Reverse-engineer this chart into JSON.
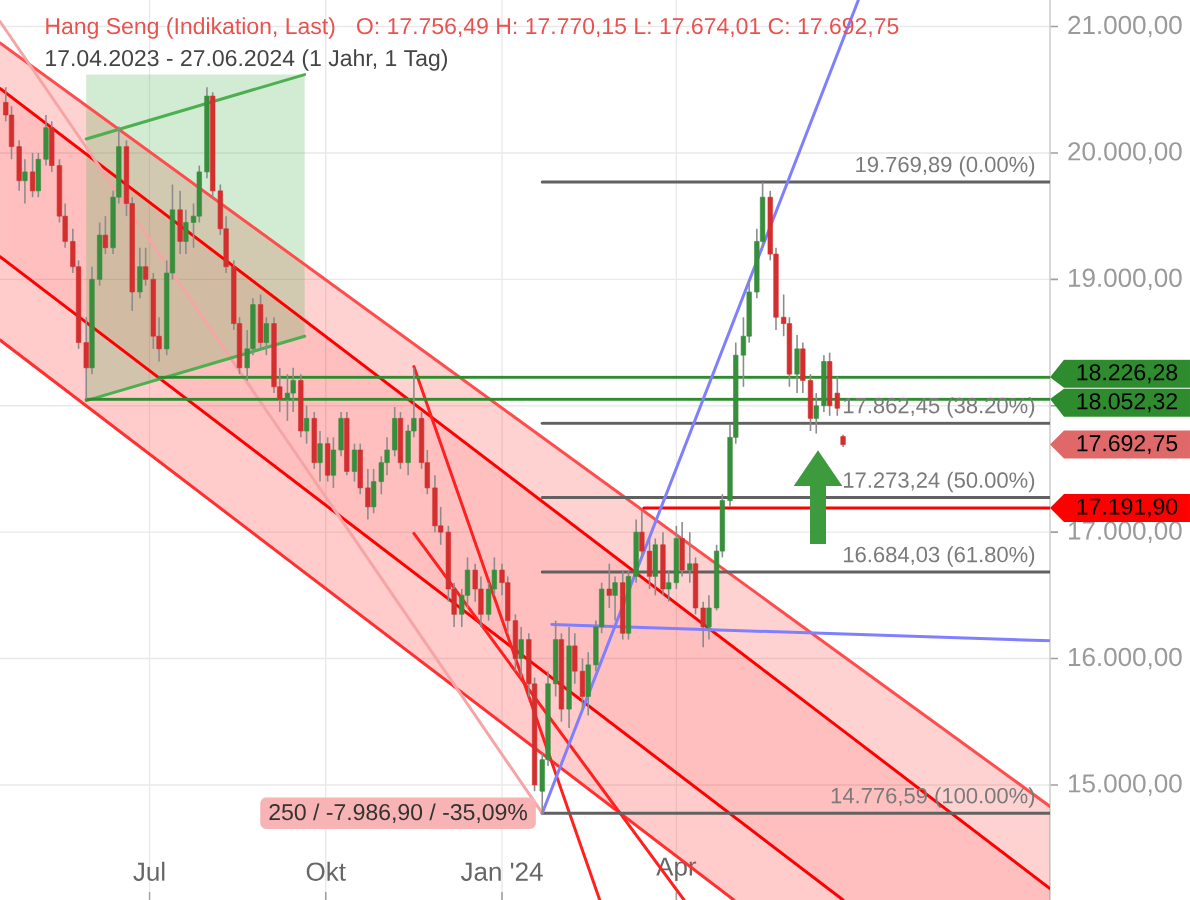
{
  "chart_data": {
    "type": "candlestick",
    "title": "Hang Seng (Indikation, Last)",
    "subtitle": "17.04.2023 - 27.06.2024 (1 Jahr, 1 Tag)",
    "annotations": [
      "O: 17.756,49 H: 17.770,15 L: 17.674,01 C: 17.692,75",
      {
        "text": "19.769,89 (0.00%)",
        "x": "2024-10-13",
        "y": 19769.89
      },
      {
        "text": "17.862,45 (38.20%)",
        "x": "2024-10-13",
        "y": 17862.45
      },
      {
        "text": "17.273,24 (50.00%)",
        "x": "2024-10-13",
        "y": 17273.24
      },
      {
        "text": "16.684,03 (61.80%)",
        "x": "2024-10-13",
        "y": 16684.03
      },
      {
        "text": "14.776,59 (100.00%)",
        "x": "2024-10-13",
        "y": 14776.59
      },
      {
        "text": "250 / -7.986,90 / -35,09%",
        "x": "2024-01-22",
        "y": 14776.59
      }
    ],
    "xlim": [
      "2023-04-14",
      "2024-10-13"
    ],
    "xticks": [
      {
        "value": "2023-07-01",
        "label": "Jul"
      },
      {
        "value": "2023-10-01",
        "label": "Okt"
      },
      {
        "value": "2024-01-01",
        "label": "Jan '24"
      },
      {
        "value": "2024-04-01",
        "label": "Apr"
      }
    ],
    "ylim": [
      14090,
      21210
    ],
    "yticks": [
      {
        "value": 15000,
        "label": "15.000,00"
      },
      {
        "value": 16000,
        "label": "16.000,00"
      },
      {
        "value": 17000,
        "label": "17.000,00"
      },
      {
        "value": 18000,
        "label": null
      },
      {
        "value": 19000,
        "label": "19.000,00"
      },
      {
        "value": 20000,
        "label": "20.000,00"
      },
      {
        "value": 21000,
        "label": "21.000,00"
      }
    ],
    "grid": true,
    "series": [
      {
        "x": [
          "2023-04-17",
          "2023-04-20",
          "2023-04-24",
          "2023-04-27",
          "2023-05-01",
          "2023-05-04",
          "2023-05-08",
          "2023-05-11",
          "2023-05-15",
          "2023-05-18",
          "2023-05-22",
          "2023-05-25",
          "2023-05-29",
          "2023-06-01",
          "2023-06-05",
          "2023-06-08",
          "2023-06-12",
          "2023-06-15",
          "2023-06-19",
          "2023-06-22",
          "2023-06-26",
          "2023-06-29",
          "2023-07-03",
          "2023-07-06",
          "2023-07-10",
          "2023-07-13",
          "2023-07-17",
          "2023-07-20",
          "2023-07-24",
          "2023-07-27",
          "2023-07-31",
          "2023-08-03",
          "2023-08-07",
          "2023-08-10",
          "2023-08-14",
          "2023-08-17",
          "2023-08-21",
          "2023-08-24",
          "2023-08-28",
          "2023-08-31",
          "2023-09-04",
          "2023-09-07",
          "2023-09-11",
          "2023-09-14",
          "2023-09-18",
          "2023-09-21",
          "2023-09-25",
          "2023-09-28",
          "2023-10-02",
          "2023-10-05",
          "2023-10-09",
          "2023-10-12",
          "2023-10-16",
          "2023-10-19",
          "2023-10-23",
          "2023-10-26",
          "2023-10-30",
          "2023-11-02",
          "2023-11-06",
          "2023-11-09",
          "2023-11-13",
          "2023-11-16",
          "2023-11-20",
          "2023-11-23",
          "2023-11-27",
          "2023-11-30",
          "2023-12-04",
          "2023-12-07",
          "2023-12-11",
          "2023-12-14",
          "2023-12-18",
          "2023-12-21",
          "2023-12-25",
          "2023-12-28",
          "2024-01-01",
          "2024-01-04",
          "2024-01-08",
          "2024-01-11",
          "2024-01-15",
          "2024-01-18",
          "2024-01-22",
          "2024-01-25",
          "2024-01-29",
          "2024-02-01",
          "2024-02-05",
          "2024-02-08",
          "2024-02-12",
          "2024-02-15",
          "2024-02-19",
          "2024-02-22",
          "2024-02-26",
          "2024-02-29",
          "2024-03-04",
          "2024-03-07",
          "2024-03-11",
          "2024-03-14",
          "2024-03-18",
          "2024-03-21",
          "2024-03-25",
          "2024-03-28",
          "2024-04-01",
          "2024-04-04",
          "2024-04-08",
          "2024-04-11",
          "2024-04-15",
          "2024-04-18",
          "2024-04-22",
          "2024-04-25",
          "2024-04-29",
          "2024-05-02",
          "2024-05-06",
          "2024-05-09",
          "2024-05-13",
          "2024-05-16",
          "2024-05-20",
          "2024-05-23",
          "2024-05-27",
          "2024-05-30",
          "2024-06-03",
          "2024-06-06",
          "2024-06-10",
          "2024-06-13",
          "2024-06-17",
          "2024-06-20",
          "2024-06-24",
          "2024-06-27"
        ],
        "ohlc": [
          [
            20400,
            20520,
            20250,
            20300
          ],
          [
            20300,
            20370,
            19950,
            20050
          ],
          [
            20050,
            20100,
            19700,
            19780
          ],
          [
            19780,
            19950,
            19600,
            19850
          ],
          [
            19850,
            20000,
            19650,
            19700
          ],
          [
            19700,
            20000,
            19650,
            19950
          ],
          [
            19950,
            20300,
            19900,
            20200
          ],
          [
            20200,
            20250,
            19850,
            19900
          ],
          [
            19900,
            19950,
            19450,
            19500
          ],
          [
            19500,
            19600,
            19250,
            19300
          ],
          [
            19300,
            19400,
            19050,
            19100
          ],
          [
            19100,
            19150,
            18450,
            18500
          ],
          [
            18500,
            18700,
            18050,
            18300
          ],
          [
            18300,
            19100,
            18250,
            19000
          ],
          [
            19000,
            19450,
            18950,
            19350
          ],
          [
            19350,
            19500,
            19200,
            19250
          ],
          [
            19250,
            19700,
            19200,
            19650
          ],
          [
            19650,
            20210,
            19600,
            20050
          ],
          [
            20050,
            20100,
            19500,
            19600
          ],
          [
            19600,
            19650,
            18750,
            18900
          ],
          [
            18900,
            19250,
            18850,
            19100
          ],
          [
            19100,
            19250,
            18950,
            19000
          ],
          [
            19000,
            19050,
            18450,
            18550
          ],
          [
            18550,
            18700,
            18350,
            18450
          ],
          [
            18450,
            19150,
            18400,
            19050
          ],
          [
            19050,
            19750,
            19000,
            19550
          ],
          [
            19550,
            19700,
            19200,
            19300
          ],
          [
            19300,
            19550,
            19200,
            19450
          ],
          [
            19450,
            19600,
            19250,
            19500
          ],
          [
            19500,
            19900,
            19450,
            19850
          ],
          [
            19850,
            20520,
            19800,
            20450
          ],
          [
            20450,
            20480,
            19650,
            19700
          ],
          [
            19700,
            19750,
            19350,
            19400
          ],
          [
            19400,
            19500,
            19050,
            19100
          ],
          [
            19100,
            19150,
            18600,
            18650
          ],
          [
            18650,
            18700,
            18250,
            18300
          ],
          [
            18300,
            18600,
            18200,
            18450
          ],
          [
            18450,
            18850,
            18400,
            18800
          ],
          [
            18800,
            18880,
            18450,
            18500
          ],
          [
            18500,
            18700,
            18400,
            18650
          ],
          [
            18650,
            18700,
            18100,
            18150
          ],
          [
            18150,
            18300,
            17950,
            18050
          ],
          [
            18050,
            18250,
            17880,
            18100
          ],
          [
            18100,
            18300,
            17950,
            18200
          ],
          [
            18200,
            18250,
            17750,
            17800
          ],
          [
            17800,
            18000,
            17700,
            17900
          ],
          [
            17900,
            17950,
            17500,
            17550
          ],
          [
            17550,
            17800,
            17400,
            17700
          ],
          [
            17700,
            17750,
            17400,
            17450
          ],
          [
            17450,
            17750,
            17350,
            17650
          ],
          [
            17650,
            17950,
            17600,
            17900
          ],
          [
            17900,
            17950,
            17450,
            17480
          ],
          [
            17480,
            17700,
            17400,
            17650
          ],
          [
            17650,
            17700,
            17300,
            17350
          ],
          [
            17350,
            17500,
            17100,
            17200
          ],
          [
            17200,
            17500,
            17150,
            17400
          ],
          [
            17400,
            17600,
            17300,
            17550
          ],
          [
            17550,
            17750,
            17450,
            17650
          ],
          [
            17650,
            17990,
            17600,
            17900
          ],
          [
            17900,
            17950,
            17500,
            17550
          ],
          [
            17550,
            17850,
            17450,
            17800
          ],
          [
            17800,
            18300,
            17750,
            17900
          ],
          [
            17900,
            17950,
            17500,
            17550
          ],
          [
            17550,
            17650,
            17300,
            17350
          ],
          [
            17350,
            17450,
            17000,
            17050
          ],
          [
            17050,
            17200,
            16900,
            17000
          ],
          [
            17000,
            17050,
            16450,
            16550
          ],
          [
            16550,
            16600,
            16250,
            16350
          ],
          [
            16350,
            16550,
            16250,
            16500
          ],
          [
            16500,
            16800,
            16400,
            16700
          ],
          [
            16700,
            16750,
            16450,
            16550
          ],
          [
            16550,
            16650,
            16250,
            16350
          ],
          [
            16350,
            16600,
            16300,
            16550
          ],
          [
            16550,
            16800,
            16500,
            16700
          ],
          [
            16700,
            16750,
            16500,
            16600
          ],
          [
            16600,
            16650,
            16200,
            16300
          ],
          [
            16300,
            16350,
            15900,
            16000
          ],
          [
            16000,
            16250,
            15850,
            16150
          ],
          [
            16150,
            16200,
            15700,
            15800
          ],
          [
            15800,
            15850,
            14950,
            15000
          ],
          [
            14950,
            15250,
            14776.59,
            15200
          ],
          [
            15200,
            15900,
            15150,
            15800
          ],
          [
            15800,
            16300,
            15700,
            16150
          ],
          [
            16150,
            16200,
            15500,
            15600
          ],
          [
            15600,
            16250,
            15450,
            16100
          ],
          [
            16100,
            16200,
            15800,
            15900
          ],
          [
            15900,
            16000,
            15600,
            15700
          ],
          [
            15700,
            16050,
            15550,
            15950
          ],
          [
            15950,
            16300,
            15900,
            16250
          ],
          [
            16250,
            16600,
            16200,
            16550
          ],
          [
            16550,
            16750,
            16400,
            16500
          ],
          [
            16500,
            16650,
            16300,
            16600
          ],
          [
            16600,
            16700,
            16150,
            16200
          ],
          [
            16200,
            16700,
            16150,
            16650
          ],
          [
            16650,
            17100,
            16600,
            17000
          ],
          [
            17000,
            17170,
            16800,
            16850
          ],
          [
            16850,
            16950,
            16550,
            16650
          ],
          [
            16650,
            16950,
            16500,
            16900
          ],
          [
            16900,
            17000,
            16500,
            16550
          ],
          [
            16550,
            16700,
            16450,
            16600
          ],
          [
            16600,
            17050,
            16550,
            16950
          ],
          [
            16950,
            17080,
            16650,
            16700
          ],
          [
            16700,
            17000,
            16600,
            16750
          ],
          [
            16750,
            16800,
            16350,
            16400
          ],
          [
            16400,
            16450,
            16090,
            16250
          ],
          [
            16250,
            16500,
            16150,
            16400
          ],
          [
            16400,
            16900,
            16380,
            16850
          ],
          [
            16850,
            17300,
            16800,
            17250
          ],
          [
            17250,
            17850,
            17200,
            17750
          ],
          [
            17750,
            18500,
            17700,
            18400
          ],
          [
            18400,
            18700,
            18150,
            18550
          ],
          [
            18550,
            19000,
            18500,
            18900
          ],
          [
            18900,
            19400,
            18850,
            19300
          ],
          [
            19300,
            19769.89,
            19250,
            19650
          ],
          [
            19650,
            19700,
            19150,
            19200
          ],
          [
            19200,
            19250,
            18600,
            18700
          ],
          [
            18700,
            18880,
            18550,
            18650
          ],
          [
            18650,
            18700,
            18150,
            18250
          ],
          [
            18250,
            18560,
            18100,
            18450
          ],
          [
            18450,
            18500,
            18100,
            18200
          ],
          [
            18200,
            18250,
            17800,
            17900
          ],
          [
            17900,
            18100,
            17780,
            18000
          ],
          [
            18000,
            18400,
            17950,
            18350
          ],
          [
            18350,
            18420,
            17920,
            18000
          ],
          [
            18100,
            18230,
            17920,
            17980
          ],
          [
            17756.49,
            17770.15,
            17674.01,
            17692.75
          ]
        ],
        "colors": [
          "#d32f2f",
          "#d32f2f",
          "#d32f2f",
          "#388e3c",
          "#d32f2f",
          "#388e3c",
          "#388e3c",
          "#d32f2f",
          "#d32f2f",
          "#d32f2f",
          "#d32f2f",
          "#d32f2f",
          "#d32f2f",
          "#388e3c",
          "#388e3c",
          "#d32f2f",
          "#388e3c",
          "#388e3c",
          "#d32f2f",
          "#d32f2f",
          "#388e3c",
          "#d32f2f",
          "#d32f2f",
          "#d32f2f",
          "#388e3c",
          "#388e3c",
          "#d32f2f",
          "#388e3c",
          "#388e3c",
          "#388e3c",
          "#388e3c",
          "#d32f2f",
          "#d32f2f",
          "#d32f2f",
          "#d32f2f",
          "#d32f2f",
          "#388e3c",
          "#388e3c",
          "#d32f2f",
          "#388e3c",
          "#d32f2f",
          "#d32f2f",
          "#388e3c",
          "#388e3c",
          "#d32f2f",
          "#388e3c",
          "#d32f2f",
          "#388e3c",
          "#d32f2f",
          "#388e3c",
          "#388e3c",
          "#d32f2f",
          "#388e3c",
          "#d32f2f",
          "#d32f2f",
          "#388e3c",
          "#388e3c",
          "#388e3c",
          "#388e3c",
          "#d32f2f",
          "#388e3c",
          "#388e3c",
          "#d32f2f",
          "#d32f2f",
          "#d32f2f",
          "#d32f2f",
          "#d32f2f",
          "#d32f2f",
          "#388e3c",
          "#388e3c",
          "#d32f2f",
          "#d32f2f",
          "#388e3c",
          "#388e3c",
          "#d32f2f",
          "#d32f2f",
          "#d32f2f",
          "#388e3c",
          "#d32f2f",
          "#d32f2f",
          "#388e3c",
          "#388e3c",
          "#388e3c",
          "#d32f2f",
          "#388e3c",
          "#d32f2f",
          "#d32f2f",
          "#388e3c",
          "#388e3c",
          "#388e3c",
          "#d32f2f",
          "#388e3c",
          "#d32f2f",
          "#388e3c",
          "#388e3c",
          "#d32f2f",
          "#d32f2f",
          "#388e3c",
          "#d32f2f",
          "#388e3c",
          "#388e3c",
          "#d32f2f",
          "#388e3c",
          "#d32f2f",
          "#d32f2f",
          "#388e3c",
          "#388e3c",
          "#388e3c",
          "#388e3c",
          "#388e3c",
          "#388e3c",
          "#388e3c",
          "#388e3c",
          "#388e3c",
          "#d32f2f",
          "#d32f2f",
          "#d32f2f",
          "#d32f2f",
          "#388e3c",
          "#d32f2f",
          "#d32f2f",
          "#388e3c",
          "#388e3c",
          "#d32f2f",
          "#d32f2f",
          "#d32f2f"
        ],
        "value_labels": [
          null,
          null,
          null,
          null,
          null,
          null,
          null,
          null,
          null,
          null,
          null,
          null,
          null,
          null,
          null,
          null,
          null,
          null,
          null,
          null,
          null,
          null,
          null,
          null,
          null,
          null,
          null,
          null,
          null,
          null,
          null,
          null,
          null,
          null,
          null,
          null,
          null,
          null,
          null,
          null,
          null,
          null,
          null,
          null,
          null,
          null,
          null,
          null,
          null,
          null,
          null,
          null,
          null,
          null,
          null,
          null,
          null,
          null,
          null,
          null,
          null,
          null,
          null,
          null,
          null,
          null,
          null,
          null,
          null,
          null,
          null,
          null,
          null,
          null,
          null,
          null,
          null,
          null,
          null,
          null,
          null,
          null,
          null,
          null,
          null,
          null,
          null,
          null,
          null,
          null,
          null,
          null,
          null,
          null,
          null,
          null,
          null,
          null,
          null,
          null,
          null,
          null,
          null,
          null,
          null,
          null,
          null,
          null,
          null,
          null,
          null,
          null,
          null,
          null,
          null,
          null,
          null,
          null,
          null,
          null,
          null,
          null,
          null,
          null,
          null,
          "17.692,75"
        ]
      },
      {
        "type": "line",
        "color": "#ff4d4d",
        "x": [
          "2023-04-14",
          "2024-10-13"
        ],
        "values": [
          20870,
          14830
        ],
        "lower": [
          20510,
          14180
        ],
        "upper": [
          20870,
          14830
        ]
      },
      {
        "type": "line",
        "color": "#ff0000",
        "x": [
          "2023-04-14",
          "2024-06-27",
          "2024-10-13"
        ],
        "values": [
          20510,
          15430,
          14180
        ],
        "lower": [
          19180,
          14090,
          14090
        ],
        "upper": [
          20510,
          15430,
          14180
        ]
      },
      {
        "type": "line",
        "color": "#ff0000",
        "x": [
          "2023-04-14",
          "2024-06-27"
        ],
        "values": [
          19180,
          14090
        ]
      },
      {
        "type": "line",
        "color": "#ff3030",
        "x": [
          "2023-04-14",
          "2024-05-01",
          "2024-06-27"
        ],
        "values": [
          18520,
          14090,
          null
        ],
        "lower": [
          18520,
          14090,
          14090
        ],
        "upper": [
          19180,
          14750,
          14090
        ]
      },
      {
        "type": "line",
        "color": "#ff2020",
        "x": [
          "2023-11-16",
          "2024-02-21"
        ],
        "values": [
          18310,
          14090
        ]
      },
      {
        "type": "line",
        "color": "#ff2020",
        "x": [
          "2023-11-16",
          "2024-04-05"
        ],
        "values": [
          16990,
          14090
        ]
      },
      {
        "type": "line",
        "color": "#f5a5a5",
        "x": [
          "2023-04-14",
          "2024-01-22"
        ],
        "values": [
          21040,
          14776.59
        ]
      },
      {
        "type": "line",
        "color": "#4caf50",
        "x": [
          "2023-05-29",
          "2023-09-20"
        ],
        "values": [
          18040,
          18550
        ],
        "lower": [
          18040,
          18550
        ],
        "upper": [
          20620,
          20620
        ]
      },
      {
        "type": "line",
        "color": "#4caf50",
        "x": [
          "2023-05-29",
          "2023-09-20"
        ],
        "values": [
          20110,
          20620
        ]
      },
      {
        "type": "line",
        "name": "18.052,32",
        "color": "#2e8b2e",
        "x": [
          "2023-05-29",
          "2024-10-13"
        ],
        "values": [
          18052.32,
          18052.32
        ]
      },
      {
        "type": "line",
        "name": "18.226,28",
        "color": "#2e8b2e",
        "x": [
          "2023-07-06",
          "2024-10-13"
        ],
        "values": [
          18226.28,
          18226.28
        ]
      },
      {
        "type": "line",
        "name": "17.191,90",
        "color": "#ff0000",
        "x": [
          "2024-03-15",
          "2024-10-13"
        ],
        "values": [
          17191.9,
          17191.9
        ]
      },
      {
        "type": "line",
        "color": "#616161",
        "x": [
          "2024-01-22",
          "2024-10-13"
        ],
        "values": [
          19769.89,
          19769.89
        ]
      },
      {
        "type": "line",
        "color": "#616161",
        "x": [
          "2024-01-22",
          "2024-10-13"
        ],
        "values": [
          17862.45,
          17862.45
        ]
      },
      {
        "type": "line",
        "color": "#616161",
        "x": [
          "2024-01-22",
          "2024-10-13"
        ],
        "values": [
          17273.24,
          17273.24
        ]
      },
      {
        "type": "line",
        "color": "#616161",
        "x": [
          "2024-01-22",
          "2024-10-13"
        ],
        "values": [
          16684.03,
          16684.03
        ]
      },
      {
        "type": "line",
        "color": "#616161",
        "x": [
          "2024-01-22",
          "2024-10-13"
        ],
        "values": [
          14776.59,
          14776.59
        ]
      },
      {
        "type": "line",
        "color": "#7f7fff",
        "x": [
          "2024-01-22",
          "2024-07-05"
        ],
        "values": [
          14776.59,
          21210
        ]
      },
      {
        "type": "line",
        "color": "#7f7fff",
        "x": [
          "2024-01-27",
          "2024-10-13"
        ],
        "values": [
          16270,
          16140
        ]
      }
    ]
  }
}
